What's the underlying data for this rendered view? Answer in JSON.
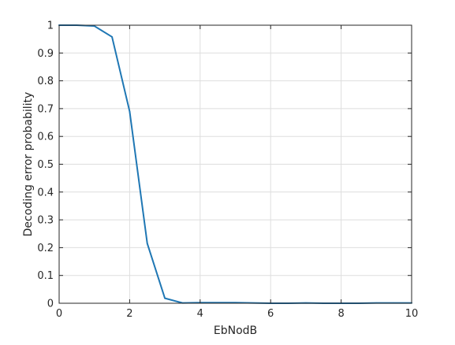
{
  "chart_data": {
    "type": "line",
    "title": "",
    "xlabel": "EbNodB",
    "ylabel": "Decoding error probability",
    "xlim": [
      0,
      10
    ],
    "ylim": [
      0,
      1
    ],
    "xticks": [
      0,
      2,
      4,
      6,
      8,
      10
    ],
    "yticks": [
      0,
      0.1,
      0.2,
      0.3,
      0.4,
      0.5,
      0.6,
      0.7,
      0.8,
      0.9,
      1
    ],
    "xtick_labels": [
      "0",
      "2",
      "4",
      "6",
      "8",
      "10"
    ],
    "ytick_labels": [
      "0",
      "0.1",
      "0.2",
      "0.3",
      "0.4",
      "0.5",
      "0.6",
      "0.7",
      "0.8",
      "0.9",
      "1"
    ],
    "grid": true,
    "series": [
      {
        "color": "#1f77b4",
        "x": [
          0,
          0.5,
          1,
          1.5,
          2,
          2.5,
          3,
          3.5,
          4,
          4.5,
          5,
          5.5,
          6,
          6.5,
          7,
          7.5,
          8,
          8.5,
          9,
          9.5,
          10
        ],
        "y": [
          1.0,
          1.0,
          0.997,
          0.958,
          0.69,
          0.215,
          0.018,
          0.001,
          0.002,
          0.002,
          0.002,
          0.001,
          0.0,
          0.0,
          0.001,
          0.0,
          0.0,
          0.0,
          0.001,
          0.001,
          0.001
        ]
      }
    ]
  }
}
